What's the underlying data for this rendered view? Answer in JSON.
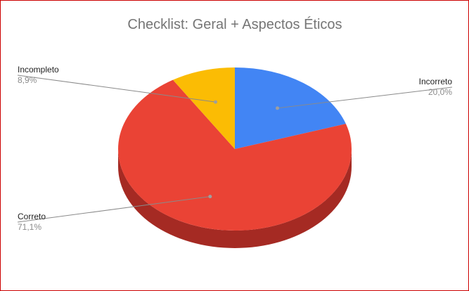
{
  "chart_data": {
    "type": "pie",
    "title": "Checklist: Geral + Aspectos Éticos",
    "slices": [
      {
        "label": "Incorreto",
        "value": 20.0,
        "display": "20,0%",
        "color": "#4285f4",
        "side_color": "#2f67c6"
      },
      {
        "label": "Correto",
        "value": 71.1,
        "display": "71,1%",
        "color": "#ea4335",
        "side_color": "#a52a23"
      },
      {
        "label": "Incompleto",
        "value": 8.9,
        "display": "8,9%",
        "color": "#fbbc04",
        "side_color": "#b88a03"
      }
    ],
    "three_d": true,
    "legend": "none",
    "label_style": "leader-lines"
  }
}
